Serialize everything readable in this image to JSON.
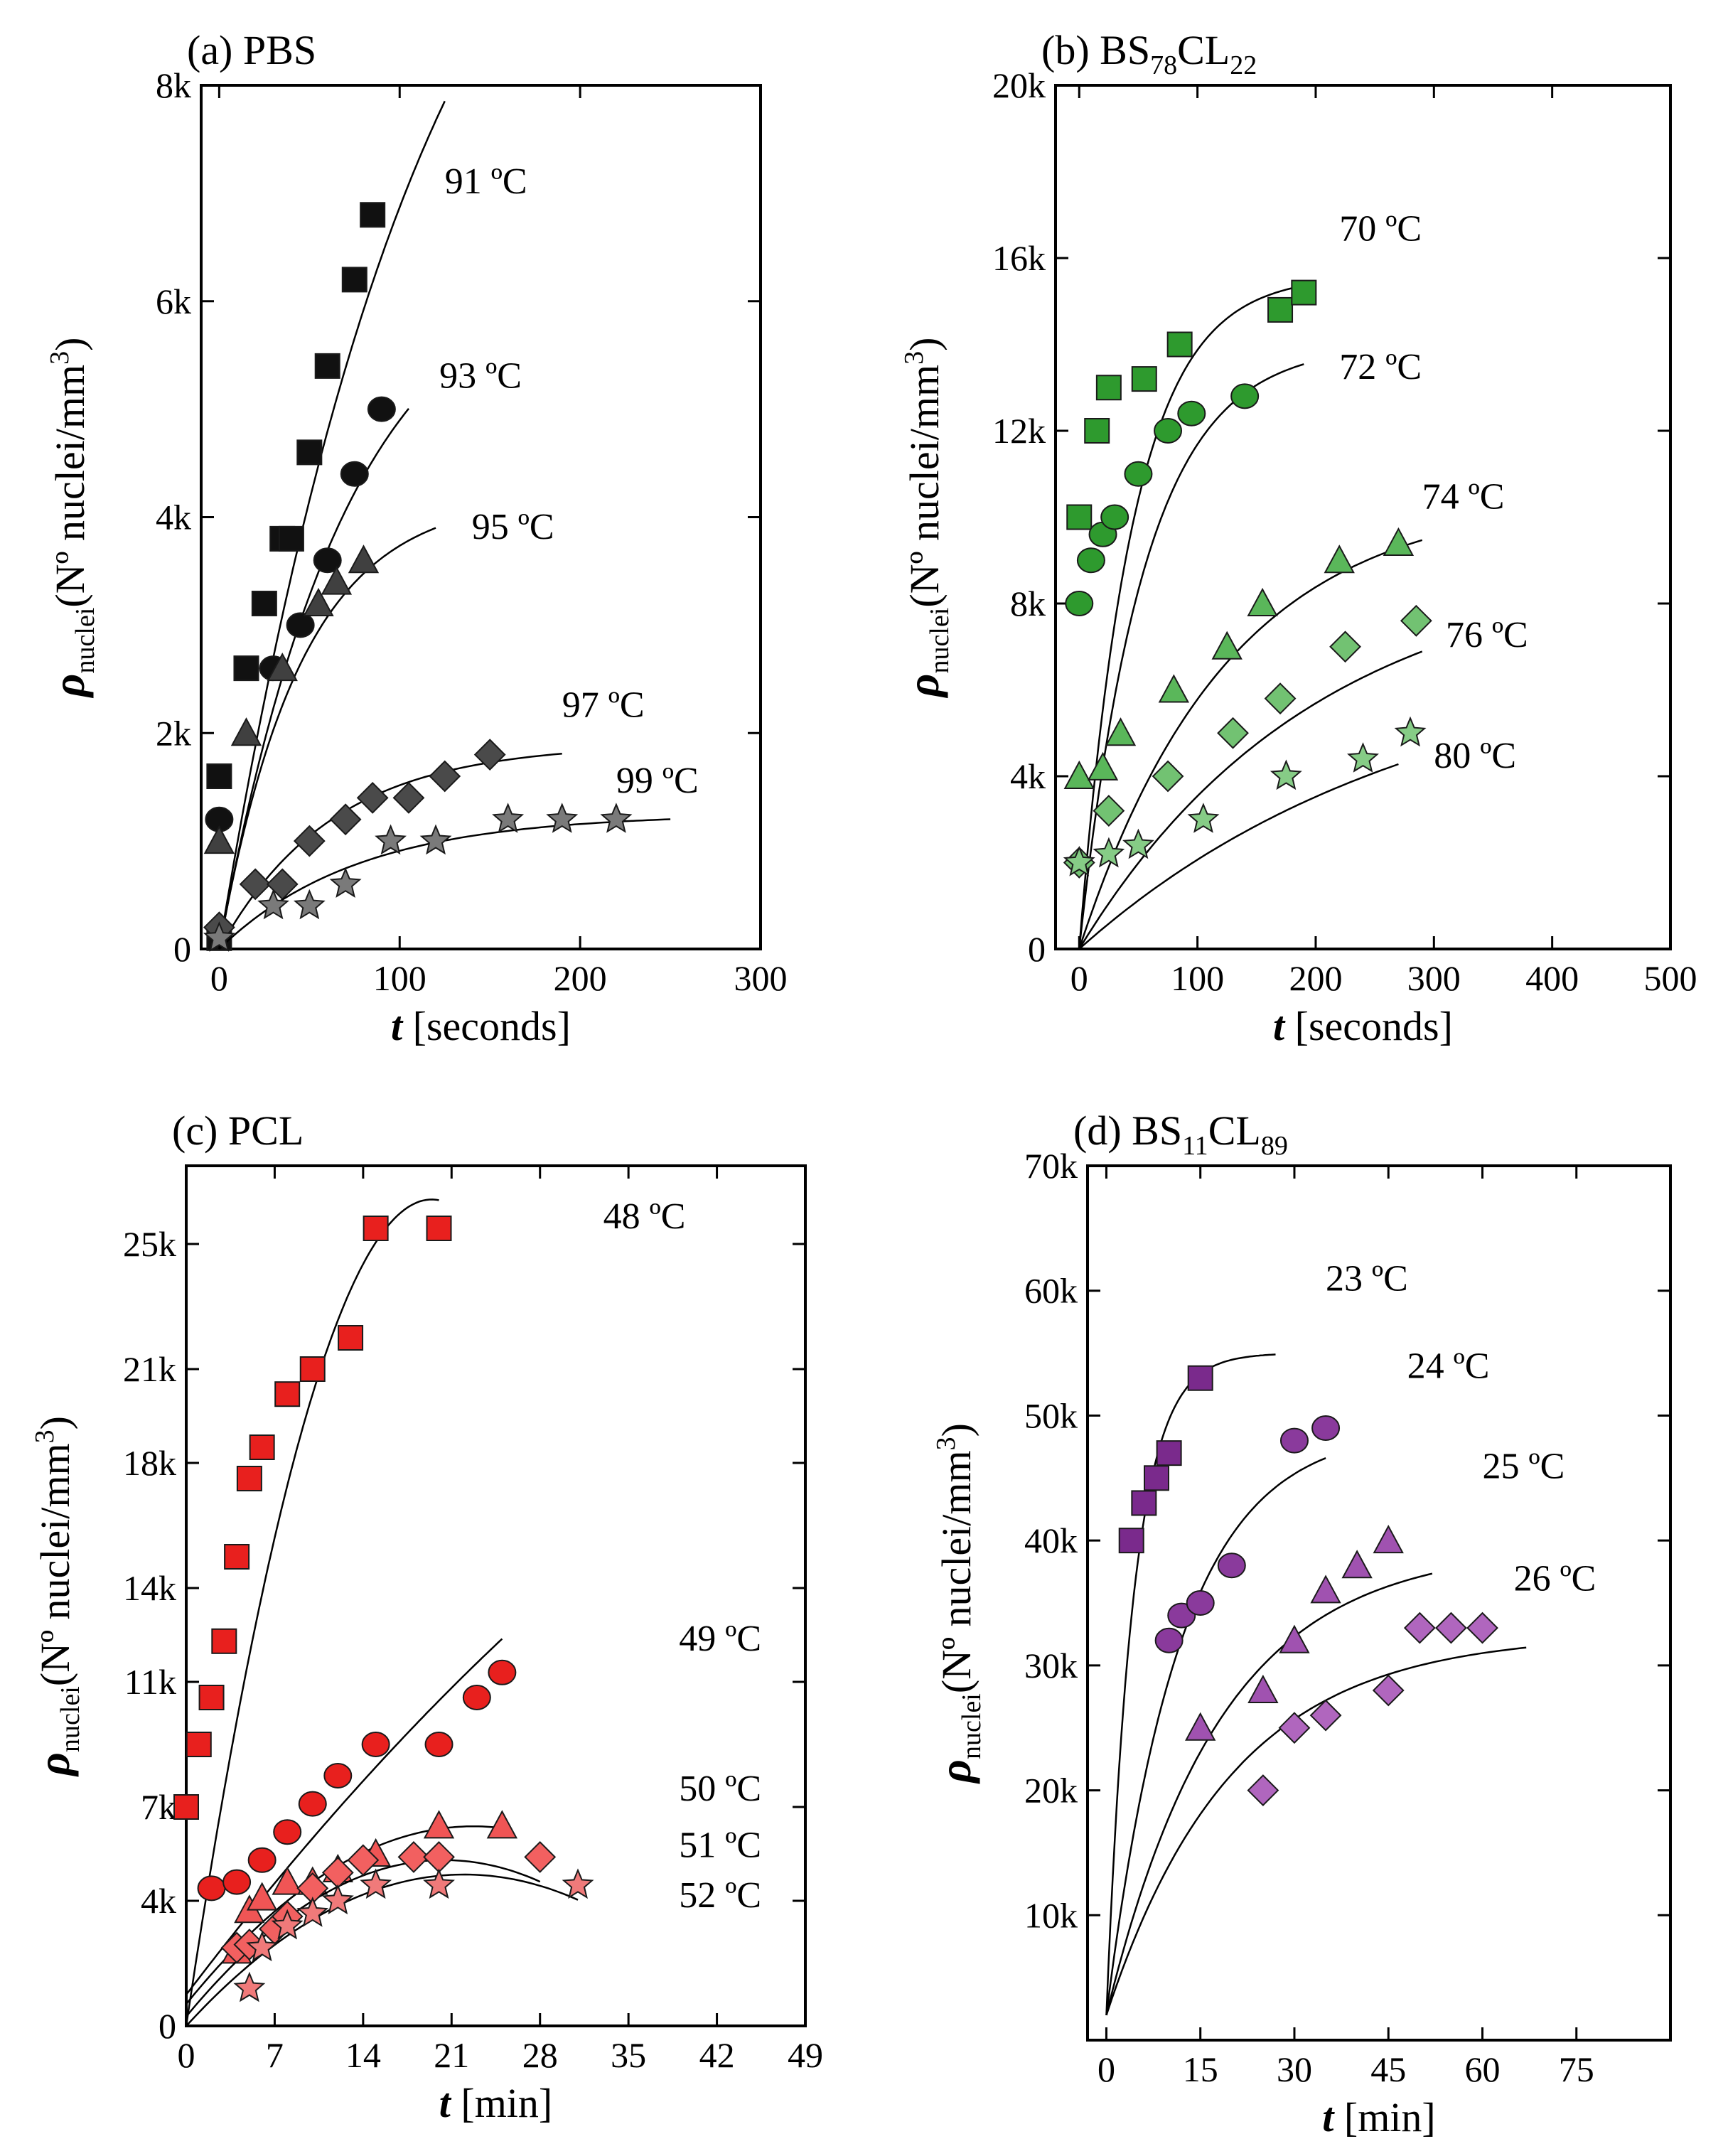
{
  "chart_data": [
    {
      "type": "scatter",
      "panel": "(a)",
      "title": "PBS",
      "title_sub": "",
      "title_tail": "",
      "title_sub2": "",
      "xlabel_italic": "t",
      "xlabel_rest": " [seconds]",
      "ylabel_rho": "ρ",
      "ylabel_sub": "nuclei",
      "ylabel_rest": "(Nº nuclei/mm",
      "ylabel_sup": "3",
      "ylabel_close": ")",
      "xlim": [
        -10,
        300
      ],
      "ylim": [
        0,
        8000
      ],
      "xticks": [
        0,
        100,
        200,
        300
      ],
      "xticklabels": [
        "0",
        "100",
        "200",
        "300"
      ],
      "yticks": [
        0,
        2000,
        4000,
        6000,
        8000
      ],
      "yticklabels": [
        "0",
        "2k",
        "4k",
        "6k",
        "8k"
      ],
      "series": [
        {
          "name": "91 ºC",
          "marker": "square",
          "color": "#111111",
          "x": [
            0,
            0,
            15,
            25,
            35,
            40,
            50,
            60,
            75,
            85
          ],
          "y": [
            1600,
            100,
            2600,
            3200,
            3800,
            3800,
            4600,
            5400,
            6200,
            6800
          ],
          "fit": {
            "A": 12000,
            "k": 0.0085,
            "xmax": 125
          },
          "label_x": 125,
          "label_y": 7000
        },
        {
          "name": "93 ºC",
          "marker": "circle",
          "color": "#111111",
          "x": [
            0,
            30,
            45,
            60,
            75,
            90
          ],
          "y": [
            1200,
            2600,
            3000,
            3600,
            4400,
            5000
          ],
          "fit": {
            "A": 6500,
            "k": 0.014,
            "xmax": 105
          },
          "label_x": 122,
          "label_y": 5200
        },
        {
          "name": "95 ºC",
          "marker": "triangle",
          "color": "#404040",
          "x": [
            0,
            15,
            35,
            55,
            65,
            80
          ],
          "y": [
            1000,
            2000,
            2600,
            3200,
            3400,
            3600
          ],
          "fit": {
            "A": 4200,
            "k": 0.022,
            "xmax": 120
          },
          "label_x": 140,
          "label_y": 3800
        },
        {
          "name": "97 ºC",
          "marker": "diamond",
          "color": "#4a4a4a",
          "x": [
            0,
            20,
            35,
            50,
            70,
            85,
            105,
            125,
            150
          ],
          "y": [
            200,
            600,
            600,
            1000,
            1200,
            1400,
            1400,
            1600,
            1800
          ],
          "fit": {
            "A": 1900,
            "k": 0.016,
            "xmax": 190
          },
          "label_x": 190,
          "label_y": 2150
        },
        {
          "name": "99 ºC",
          "marker": "star",
          "color": "#7a7a7a",
          "x": [
            0,
            30,
            50,
            70,
            95,
            120,
            160,
            190,
            220
          ],
          "y": [
            100,
            400,
            400,
            600,
            1000,
            1000,
            1200,
            1200,
            1200
          ],
          "fit": {
            "A": 1250,
            "k": 0.013,
            "xmax": 250
          },
          "label_x": 220,
          "label_y": 1450
        }
      ]
    },
    {
      "type": "scatter",
      "panel": "(b)",
      "title": "BS",
      "title_sub": "78",
      "title_tail": "CL",
      "title_sub2": "22",
      "xlabel_italic": "t",
      "xlabel_rest": " [seconds]",
      "ylabel_rho": "ρ",
      "ylabel_sub": "nuclei",
      "ylabel_rest": "(Nº nuclei/mm",
      "ylabel_sup": "3",
      "ylabel_close": ")",
      "xlim": [
        -20,
        500
      ],
      "ylim": [
        0,
        20000
      ],
      "xticks": [
        0,
        100,
        200,
        300,
        400,
        500
      ],
      "xticklabels": [
        "0",
        "100",
        "200",
        "300",
        "400",
        "500"
      ],
      "yticks": [
        0,
        4000,
        8000,
        12000,
        16000,
        20000
      ],
      "yticklabels": [
        "0",
        "4k",
        "8k",
        "12k",
        "16k",
        "20k"
      ],
      "series": [
        {
          "name": "70 ºC",
          "marker": "square",
          "color": "#2e9a2e",
          "x": [
            0,
            15,
            25,
            55,
            85,
            170,
            190
          ],
          "y": [
            10000,
            12000,
            13000,
            13200,
            14000,
            14800,
            15200
          ],
          "fit": {
            "A": 15600,
            "k": 0.022,
            "xmax": 190
          },
          "label_x": 220,
          "label_y": 16400
        },
        {
          "name": "72 ºC",
          "marker": "circle",
          "color": "#2e9a2e",
          "x": [
            0,
            10,
            20,
            30,
            50,
            75,
            95,
            140
          ],
          "y": [
            8000,
            9000,
            9600,
            10000,
            11000,
            12000,
            12400,
            12800
          ],
          "fit": {
            "A": 14000,
            "k": 0.018,
            "xmax": 190
          },
          "label_x": 220,
          "label_y": 13200
        },
        {
          "name": "74 ºC",
          "marker": "triangle",
          "color": "#5ab75a",
          "x": [
            0,
            20,
            35,
            80,
            125,
            155,
            220,
            270
          ],
          "y": [
            4000,
            4200,
            5000,
            6000,
            7000,
            8000,
            9000,
            9400
          ],
          "fit": {
            "A": 10500,
            "k": 0.008,
            "xmax": 290
          },
          "label_x": 290,
          "label_y": 10200
        },
        {
          "name": "76 ºC",
          "marker": "diamond",
          "color": "#72c272",
          "x": [
            0,
            25,
            75,
            130,
            170,
            225,
            285
          ],
          "y": [
            2000,
            3200,
            4000,
            5000,
            5800,
            7000,
            7600
          ],
          "fit": {
            "A": 9000,
            "k": 0.005,
            "xmax": 290
          },
          "label_x": 310,
          "label_y": 7000
        },
        {
          "name": "80 ºC",
          "marker": "star",
          "color": "#86cc86",
          "x": [
            0,
            25,
            50,
            105,
            175,
            240,
            280
          ],
          "y": [
            2000,
            2200,
            2400,
            3000,
            4000,
            4400,
            5000
          ],
          "fit": {
            "A": 7000,
            "k": 0.0035,
            "xmax": 270
          },
          "label_x": 300,
          "label_y": 4200
        }
      ]
    },
    {
      "type": "scatter",
      "panel": "(c)",
      "title": "PCL",
      "title_sub": "",
      "title_tail": "",
      "title_sub2": "",
      "xlabel_italic": "t",
      "xlabel_rest": " [min]",
      "ylabel_rho": "ρ",
      "ylabel_sub": "nuclei",
      "ylabel_rest": "(Nº nuclei/mm",
      "ylabel_sup": "3",
      "ylabel_close": ")",
      "xlim": [
        0,
        49
      ],
      "ylim": [
        0,
        27500
      ],
      "xticks": [
        0,
        7,
        14,
        21,
        28,
        35,
        42,
        49
      ],
      "xticklabels": [
        "0",
        "7",
        "14",
        "21",
        "28",
        "35",
        "42",
        "49"
      ],
      "yticks": [
        0,
        4000,
        7000,
        11000,
        14000,
        18000,
        21000,
        25000
      ],
      "yticklabels": [
        "0",
        "4k",
        "7k",
        "11k",
        "14k",
        "18k",
        "21k",
        "25k"
      ],
      "series": [
        {
          "name": "48  ºC",
          "marker": "square",
          "color": "#e8201e",
          "x": [
            0,
            1,
            2,
            3,
            4,
            5,
            6,
            8,
            10,
            13,
            15,
            20
          ],
          "y": [
            7000,
            9000,
            10500,
            12300,
            15000,
            17500,
            18500,
            20200,
            21000,
            22000,
            25500,
            25500
          ],
          "fitq": {
            "a": -70,
            "b": 2720,
            "c": 0,
            "xmax": 20
          },
          "label_x": 33,
          "label_y": 25500
        },
        {
          "name": "49 ºC",
          "marker": "circle",
          "color": "#e8201e",
          "x": [
            2,
            4,
            6,
            8,
            10,
            12,
            15,
            20,
            23,
            25
          ],
          "y": [
            4400,
            4600,
            5300,
            6200,
            7100,
            8000,
            9000,
            9000,
            10500,
            11300
          ],
          "fitq": {
            "a": -3,
            "b": 530,
            "c": 1000,
            "xmax": 25
          },
          "label_x": 39,
          "label_y": 12000
        },
        {
          "name": "50 ºC",
          "marker": "triangle",
          "color": "#f05555",
          "x": [
            4,
            5,
            6,
            8,
            10,
            12,
            15,
            20,
            25
          ],
          "y": [
            2400,
            3700,
            4100,
            4600,
            4600,
            5000,
            5500,
            6400,
            6400
          ],
          "fitq": {
            "a": -11,
            "b": 500,
            "c": 700,
            "xmax": 25
          },
          "label_x": 39,
          "label_y": 7200
        },
        {
          "name": "51 ºC",
          "marker": "diamond",
          "color": "#f26060",
          "x": [
            4,
            5,
            7,
            8,
            10,
            12,
            14,
            18,
            20,
            28
          ],
          "y": [
            2500,
            2600,
            3100,
            3500,
            4400,
            4900,
            5300,
            5400,
            5400,
            5400
          ],
          "fitq": {
            "a": -12,
            "b": 490,
            "c": 300,
            "xmax": 28
          },
          "label_x": 39,
          "label_y": 5400
        },
        {
          "name": "52 ºC",
          "marker": "star",
          "color": "#f07a7a",
          "x": [
            5,
            6,
            8,
            10,
            12,
            15,
            20,
            31
          ],
          "y": [
            1200,
            2500,
            3200,
            3600,
            4000,
            4500,
            4500,
            4500
          ],
          "fitq": {
            "a": -10,
            "b": 440,
            "c": 0,
            "xmax": 31
          },
          "label_x": 39,
          "label_y": 3800
        }
      ]
    },
    {
      "type": "scatter",
      "panel": "(d)",
      "title": "BS",
      "title_sub": "11",
      "title_tail": "CL",
      "title_sub2": "89",
      "xlabel_italic": "t",
      "xlabel_rest": " [min]",
      "ylabel_rho": "ρ",
      "ylabel_sub": "nuclei",
      "ylabel_rest": "(Nº nuclei/mm",
      "ylabel_sup": "3",
      "ylabel_close": ")",
      "xlim": [
        -3,
        90
      ],
      "ylim": [
        0,
        70000
      ],
      "xticks": [
        0,
        15,
        30,
        45,
        60,
        75
      ],
      "xticklabels": [
        "0",
        "15",
        "30",
        "45",
        "60",
        "75"
      ],
      "yticks": [
        10000,
        20000,
        30000,
        40000,
        50000,
        60000,
        70000
      ],
      "yticklabels": [
        "10k",
        "20k",
        "30k",
        "40k",
        "50k",
        "60k",
        "70k"
      ],
      "series": [
        {
          "name": "23 ºC",
          "marker": "square",
          "color": "#7a2a8c",
          "x": [
            4,
            6,
            8,
            10,
            15
          ],
          "y": [
            40000,
            43000,
            45000,
            47000,
            53000
          ],
          "fitexp": {
            "A": 55000,
            "k": 0.23,
            "y0": 2000,
            "xmax": 27
          },
          "label_x": 35,
          "label_y": 60000
        },
        {
          "name": "24 ºC",
          "marker": "circle",
          "color": "#8a3a9c",
          "x": [
            10,
            12,
            15,
            20,
            30,
            35
          ],
          "y": [
            32000,
            34000,
            35000,
            38000,
            48000,
            49000
          ],
          "fitexp": {
            "A": 49000,
            "k": 0.085,
            "y0": 2000,
            "xmax": 35
          },
          "label_x": 48,
          "label_y": 53000
        },
        {
          "name": "25 ºC",
          "marker": "triangle",
          "color": "#a052b0",
          "x": [
            15,
            25,
            30,
            35,
            40,
            45
          ],
          "y": [
            25000,
            28000,
            32000,
            36000,
            38000,
            40000
          ],
          "fitexp": {
            "A": 39500,
            "k": 0.055,
            "y0": 2000,
            "xmax": 52
          },
          "label_x": 60,
          "label_y": 45000
        },
        {
          "name": "26 ºC",
          "marker": "diamond",
          "color": "#b066be",
          "x": [
            25,
            30,
            35,
            45,
            50,
            55,
            60
          ],
          "y": [
            20000,
            25000,
            26000,
            28000,
            33000,
            33000,
            33000
          ],
          "fitexp": {
            "A": 32500,
            "k": 0.05,
            "y0": 2000,
            "xmax": 67
          },
          "label_x": 65,
          "label_y": 36000
        }
      ]
    }
  ]
}
